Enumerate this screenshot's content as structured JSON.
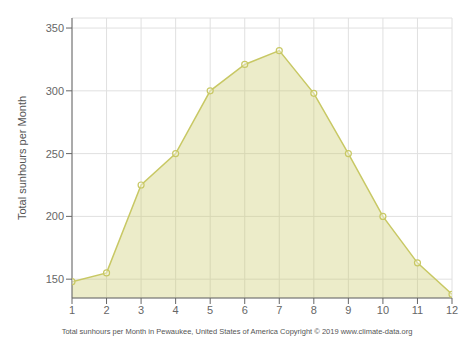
{
  "chart_data": {
    "type": "area",
    "x": [
      1,
      2,
      3,
      4,
      5,
      6,
      7,
      8,
      9,
      10,
      11,
      12
    ],
    "values": [
      148,
      155,
      225,
      250,
      300,
      321,
      332,
      298,
      250,
      200,
      163,
      138
    ],
    "color": "#C8C864",
    "marker": "circle",
    "xlabel": "Total sunhours per Month in Pewaukee, United States of America Copyright © 2019 www.climate-data.org",
    "ylabel": "Total sunhours per Month",
    "xlim": [
      1,
      12
    ],
    "xticks": [
      1,
      2,
      3,
      4,
      5,
      6,
      7,
      8,
      9,
      10,
      11,
      12
    ],
    "ylim": [
      135,
      358
    ],
    "yticks": [
      150,
      200,
      250,
      300,
      350
    ],
    "grid": true
  }
}
